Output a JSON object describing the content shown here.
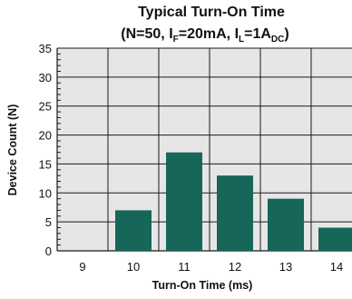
{
  "chart_data": {
    "type": "bar",
    "title_line1": "Typical Turn-On Time",
    "title_line2": {
      "prefix": "(N=50, I",
      "sub1": "F",
      "mid": "=20mA, I",
      "sub2": "L",
      "suffix": "=1A",
      "sub3": "DC",
      "end": ")"
    },
    "xlabel": "Turn-On Time (ms)",
    "ylabel": "Device Count (N)",
    "categories": [
      "9",
      "10",
      "11",
      "12",
      "13",
      "14"
    ],
    "values": [
      0,
      7,
      17,
      13,
      9,
      4
    ],
    "ylim": [
      0,
      35
    ],
    "yticks": [
      "0",
      "5",
      "10",
      "15",
      "20",
      "25",
      "30",
      "35"
    ],
    "ytick_values": [
      0,
      5,
      10,
      15,
      20,
      25,
      30,
      35
    ],
    "grid": true,
    "colors": {
      "bar": "#17665a",
      "plot_bg": "#e6e6e6",
      "grid": "#1a1a1a"
    }
  }
}
